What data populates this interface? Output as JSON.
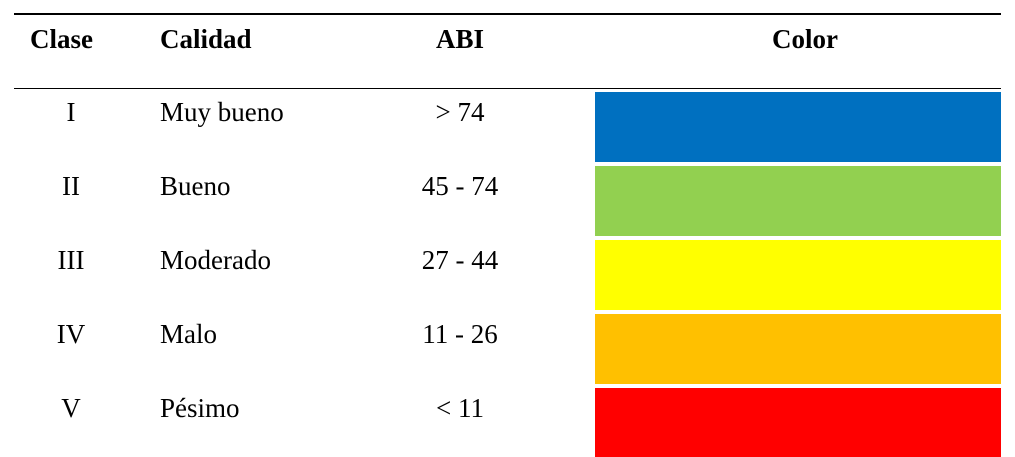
{
  "table": {
    "headers": {
      "clase": "Clase",
      "calidad": "Calidad",
      "abi": "ABI",
      "color": "Color"
    },
    "rows": [
      {
        "clase": "I",
        "calidad": "Muy bueno",
        "abi": "> 74",
        "color": "#0070C0"
      },
      {
        "clase": "II",
        "calidad": "Bueno",
        "abi": "45 - 74",
        "color": "#92D050"
      },
      {
        "clase": "III",
        "calidad": "Moderado",
        "abi": "27 - 44",
        "color": "#FFFF00"
      },
      {
        "clase": "IV",
        "calidad": "Malo",
        "abi": "11 - 26",
        "color": "#FFC000"
      },
      {
        "clase": "V",
        "calidad": "Pésimo",
        "abi": "< 11",
        "color": "#FF0000"
      }
    ]
  }
}
